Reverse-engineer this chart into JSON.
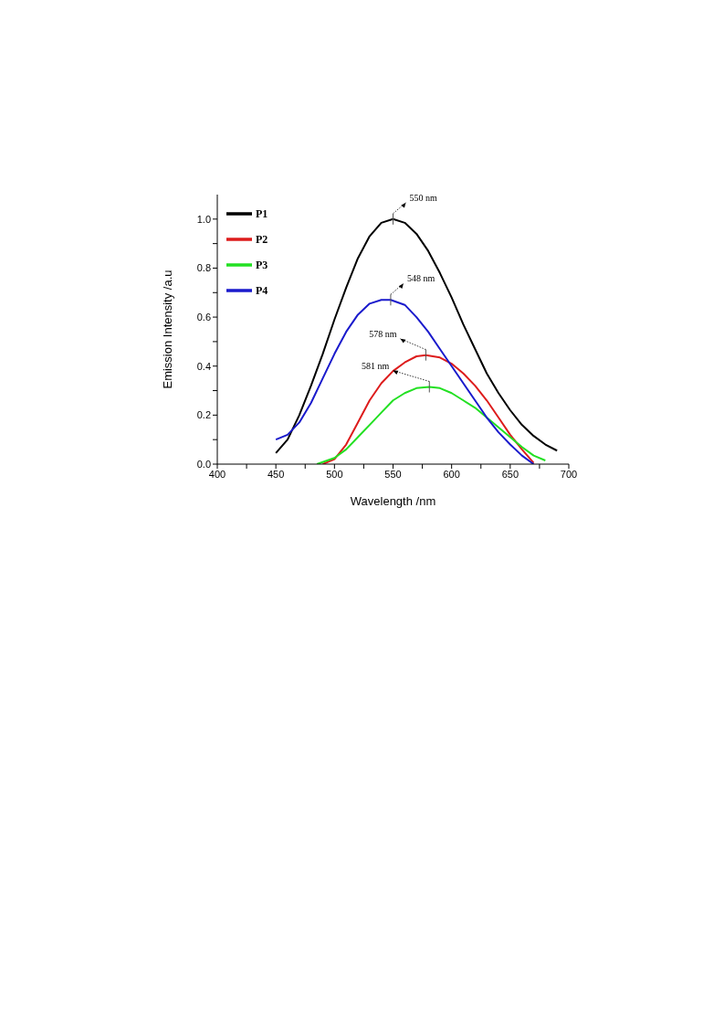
{
  "chart_data": {
    "type": "line",
    "xlabel": "Wavelength /nm",
    "ylabel": "Emission Intensity /a.u",
    "xlim": [
      400,
      700
    ],
    "ylim": [
      0,
      1.1
    ],
    "xticks": [
      400,
      {
        "value": 425,
        "label": null
      },
      450,
      {
        "value": 475,
        "label": null
      },
      500,
      {
        "value": 525,
        "label": null
      },
      550,
      {
        "value": 575,
        "label": null
      },
      600,
      {
        "value": 625,
        "label": null
      },
      650,
      {
        "value": 675,
        "label": null
      },
      700
    ],
    "yticks": [
      {
        "value": 0,
        "label": "0.0"
      },
      {
        "value": 0.1,
        "label": null
      },
      {
        "value": 0.2,
        "label": "0.2"
      },
      {
        "value": 0.3,
        "label": null
      },
      {
        "value": 0.4,
        "label": "0.4"
      },
      {
        "value": 0.5,
        "label": null
      },
      {
        "value": 0.6,
        "label": "0.6"
      },
      {
        "value": 0.7,
        "label": null
      },
      {
        "value": 0.8,
        "label": "0.8"
      },
      {
        "value": 0.9,
        "label": null
      },
      {
        "value": 1.0,
        "label": "1.0"
      }
    ],
    "grid": false,
    "legend": "top left",
    "marker": "none",
    "line_style": "solid",
    "annotations": [
      {
        "text": "550 nm",
        "x": 550,
        "y": 1.0
      },
      {
        "text": "548 nm",
        "x": 548,
        "y": 0.67
      },
      {
        "text": "578 nm",
        "x": 578,
        "y": 0.445
      },
      {
        "text": "581 nm",
        "x": 581,
        "y": 0.315
      }
    ],
    "series": [
      {
        "name": "P1",
        "color": "#000000",
        "x": [
          450,
          460,
          470,
          480,
          490,
          500,
          510,
          520,
          530,
          540,
          550,
          560,
          570,
          580,
          590,
          600,
          610,
          620,
          630,
          640,
          650,
          660,
          670,
          680,
          690
        ],
        "values": [
          0.045,
          0.1,
          0.2,
          0.32,
          0.45,
          0.59,
          0.72,
          0.84,
          0.93,
          0.985,
          1.0,
          0.985,
          0.94,
          0.87,
          0.78,
          0.68,
          0.57,
          0.47,
          0.37,
          0.29,
          0.22,
          0.16,
          0.115,
          0.08,
          0.055
        ]
      },
      {
        "name": "P2",
        "color": "#dd1c1c",
        "x": [
          490,
          500,
          510,
          520,
          530,
          540,
          550,
          560,
          570,
          578,
          590,
          600,
          610,
          620,
          630,
          640,
          650,
          660,
          670
        ],
        "values": [
          0.0,
          0.02,
          0.08,
          0.17,
          0.26,
          0.33,
          0.38,
          0.415,
          0.44,
          0.445,
          0.435,
          0.41,
          0.37,
          0.32,
          0.26,
          0.19,
          0.12,
          0.06,
          0.005
        ]
      },
      {
        "name": "P3",
        "color": "#22e022",
        "x": [
          485,
          500,
          510,
          520,
          530,
          540,
          550,
          560,
          570,
          581,
          590,
          600,
          610,
          620,
          630,
          640,
          650,
          660,
          670,
          680
        ],
        "values": [
          0.0,
          0.025,
          0.06,
          0.11,
          0.16,
          0.21,
          0.26,
          0.29,
          0.31,
          0.315,
          0.31,
          0.29,
          0.26,
          0.23,
          0.19,
          0.15,
          0.11,
          0.07,
          0.035,
          0.015
        ]
      },
      {
        "name": "P4",
        "color": "#1a1acc",
        "x": [
          450,
          460,
          470,
          480,
          490,
          500,
          510,
          520,
          530,
          540,
          548,
          560,
          570,
          580,
          590,
          600,
          610,
          620,
          630,
          640,
          650,
          660,
          670
        ],
        "values": [
          0.1,
          0.12,
          0.17,
          0.25,
          0.35,
          0.45,
          0.54,
          0.61,
          0.655,
          0.67,
          0.67,
          0.65,
          0.6,
          0.54,
          0.47,
          0.4,
          0.33,
          0.26,
          0.19,
          0.13,
          0.08,
          0.035,
          0.0
        ]
      }
    ]
  }
}
